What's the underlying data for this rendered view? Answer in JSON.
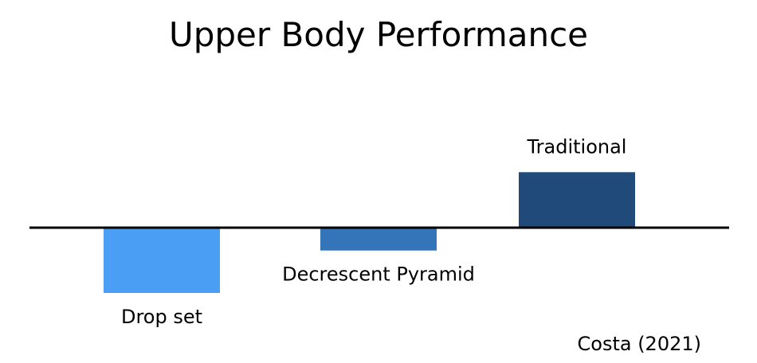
{
  "chart_data": {
    "type": "bar",
    "title": "Upper Body Performance",
    "categories": [
      "Drop set",
      "Decrescent Pyramid",
      "Traditional"
    ],
    "values": [
      -1.0,
      -0.35,
      0.85
    ],
    "colors": [
      "#4a9ff5",
      "#3474b9",
      "#1f4a7a"
    ],
    "baseline": 0,
    "ylim": [
      -1.0,
      0.85
    ],
    "grid": false,
    "y_axis_shown": false,
    "xlabel": "",
    "ylabel": "",
    "source": "Costa (2021)"
  }
}
